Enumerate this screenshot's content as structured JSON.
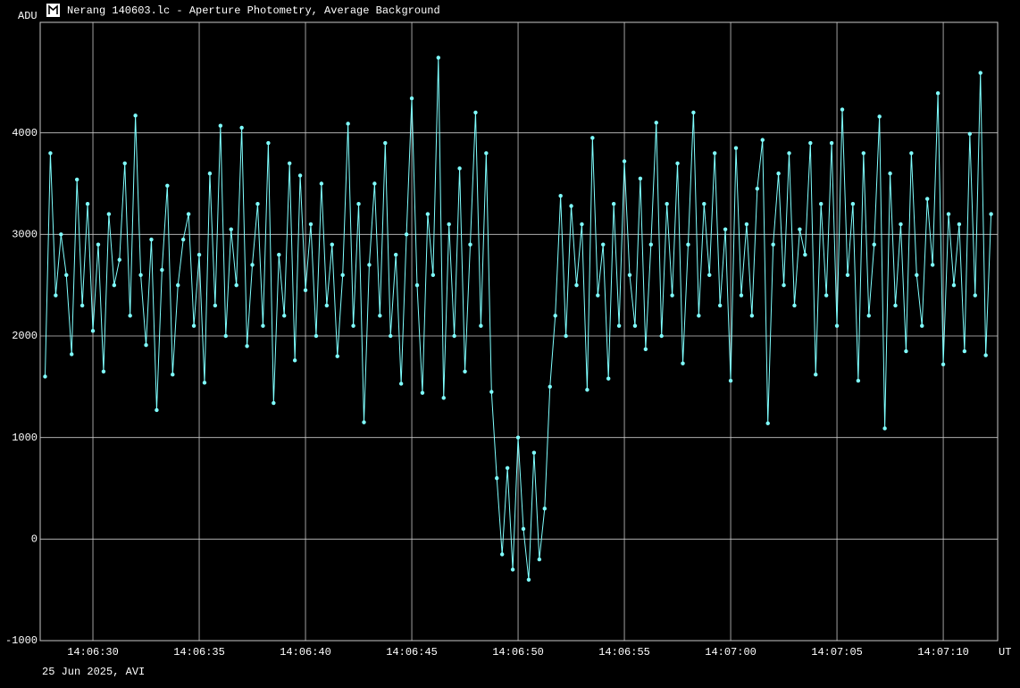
{
  "chart_data": {
    "type": "line",
    "title": "Nerang 140603.lc - Aperture Photometry, Average Background",
    "y_label": "ADU",
    "x_unit": "UT",
    "footer": "25 Jun 2025, AVI",
    "color": "#7fffff",
    "grid": true,
    "xlim": [
      27.52,
      72.56
    ],
    "ylim": [
      -1000,
      5088
    ],
    "xticks": [
      {
        "value": 30,
        "label": "14:06:30"
      },
      {
        "value": 35,
        "label": "14:06:35"
      },
      {
        "value": 40,
        "label": "14:06:40"
      },
      {
        "value": 45,
        "label": "14:06:45"
      },
      {
        "value": 50,
        "label": "14:06:50"
      },
      {
        "value": 55,
        "label": "14:06:55"
      },
      {
        "value": 60,
        "label": "14:07:00"
      },
      {
        "value": 65,
        "label": "14:07:05"
      },
      {
        "value": 70,
        "label": "14:07:10"
      }
    ],
    "yticks": [
      -1000,
      0,
      1000,
      2000,
      3000,
      4000
    ],
    "x": [
      27.75,
      28,
      28.25,
      28.5,
      28.75,
      29,
      29.25,
      29.5,
      29.75,
      30,
      30.25,
      30.5,
      30.75,
      31,
      31.25,
      31.5,
      31.75,
      32,
      32.25,
      32.5,
      32.75,
      33,
      33.25,
      33.5,
      33.75,
      34,
      34.25,
      34.5,
      34.75,
      35,
      35.25,
      35.5,
      35.75,
      36,
      36.25,
      36.5,
      36.75,
      37,
      37.25,
      37.5,
      37.75,
      38,
      38.25,
      38.5,
      38.75,
      39,
      39.25,
      39.5,
      39.75,
      40,
      40.25,
      40.5,
      40.75,
      41,
      41.25,
      41.5,
      41.75,
      42,
      42.25,
      42.5,
      42.75,
      43,
      43.25,
      43.5,
      43.75,
      44,
      44.25,
      44.5,
      44.75,
      45,
      45.25,
      45.5,
      45.75,
      46,
      46.25,
      46.5,
      46.75,
      47,
      47.25,
      47.5,
      47.75,
      48,
      48.25,
      48.5,
      48.75,
      49,
      49.25,
      49.5,
      49.75,
      50,
      50.25,
      50.5,
      50.75,
      51,
      51.25,
      51.5,
      51.75,
      52,
      52.25,
      52.5,
      52.75,
      53,
      53.25,
      53.5,
      53.75,
      54,
      54.25,
      54.5,
      54.75,
      55,
      55.25,
      55.5,
      55.75,
      56,
      56.25,
      56.5,
      56.75,
      57,
      57.25,
      57.5,
      57.75,
      58,
      58.25,
      58.5,
      58.75,
      59,
      59.25,
      59.5,
      59.75,
      60,
      60.25,
      60.5,
      60.75,
      61,
      61.25,
      61.5,
      61.75,
      62,
      62.25,
      62.5,
      62.75,
      63,
      63.25,
      63.5,
      63.75,
      64,
      64.25,
      64.5,
      64.75,
      65,
      65.25,
      65.5,
      65.75,
      66,
      66.25,
      66.5,
      66.75,
      67,
      67.25,
      67.5,
      67.75,
      68,
      68.25,
      68.5,
      68.75,
      69,
      69.25,
      69.5,
      69.75,
      70,
      70.25,
      70.5,
      70.75,
      71,
      71.25,
      71.5,
      71.75,
      72,
      72.25
    ],
    "values": [
      1600,
      3800,
      2400,
      3000,
      2600,
      1820,
      3540,
      2300,
      3300,
      2050,
      2900,
      1650,
      3200,
      2500,
      2750,
      3700,
      2200,
      4170,
      2600,
      1910,
      2950,
      1270,
      2650,
      3480,
      1620,
      2500,
      2950,
      3200,
      2100,
      2800,
      1540,
      3600,
      2300,
      4070,
      2000,
      3050,
      2500,
      4050,
      1900,
      2700,
      3300,
      2100,
      3900,
      1340,
      2800,
      2200,
      3700,
      1760,
      3580,
      2450,
      3100,
      2000,
      3500,
      2300,
      2900,
      1800,
      2600,
      4090,
      2100,
      3300,
      1150,
      2700,
      3500,
      2200,
      3900,
      2000,
      2800,
      1530,
      3000,
      4340,
      2500,
      1440,
      3200,
      2600,
      4740,
      1390,
      3100,
      2000,
      3650,
      1650,
      2900,
      4200,
      2100,
      3800,
      1450,
      600,
      -150,
      700,
      -300,
      1000,
      100,
      -400,
      850,
      -200,
      300,
      1500,
      2200,
      3380,
      2000,
      3280,
      2500,
      3100,
      1470,
      3950,
      2400,
      2900,
      1580,
      3300,
      2100,
      3720,
      2600,
      2100,
      3550,
      1870,
      2900,
      4100,
      2000,
      3300,
      2400,
      3700,
      1730,
      2900,
      4200,
      2200,
      3300,
      2600,
      3800,
      2300,
      3050,
      1560,
      3850,
      2400,
      3100,
      2200,
      3450,
      3930,
      1140,
      2900,
      3600,
      2500,
      3800,
      2300,
      3050,
      2800,
      3900,
      1620,
      3300,
      2400,
      3900,
      2100,
      4230,
      2600,
      3300,
      1560,
      3800,
      2200,
      2900,
      4160,
      1090,
      3600,
      2300,
      3100,
      1850,
      3800,
      2600,
      2100,
      3350,
      2700,
      4390,
      1720,
      3200,
      2500,
      3100,
      1850,
      3990,
      2400,
      4590,
      1810,
      3200
    ]
  }
}
